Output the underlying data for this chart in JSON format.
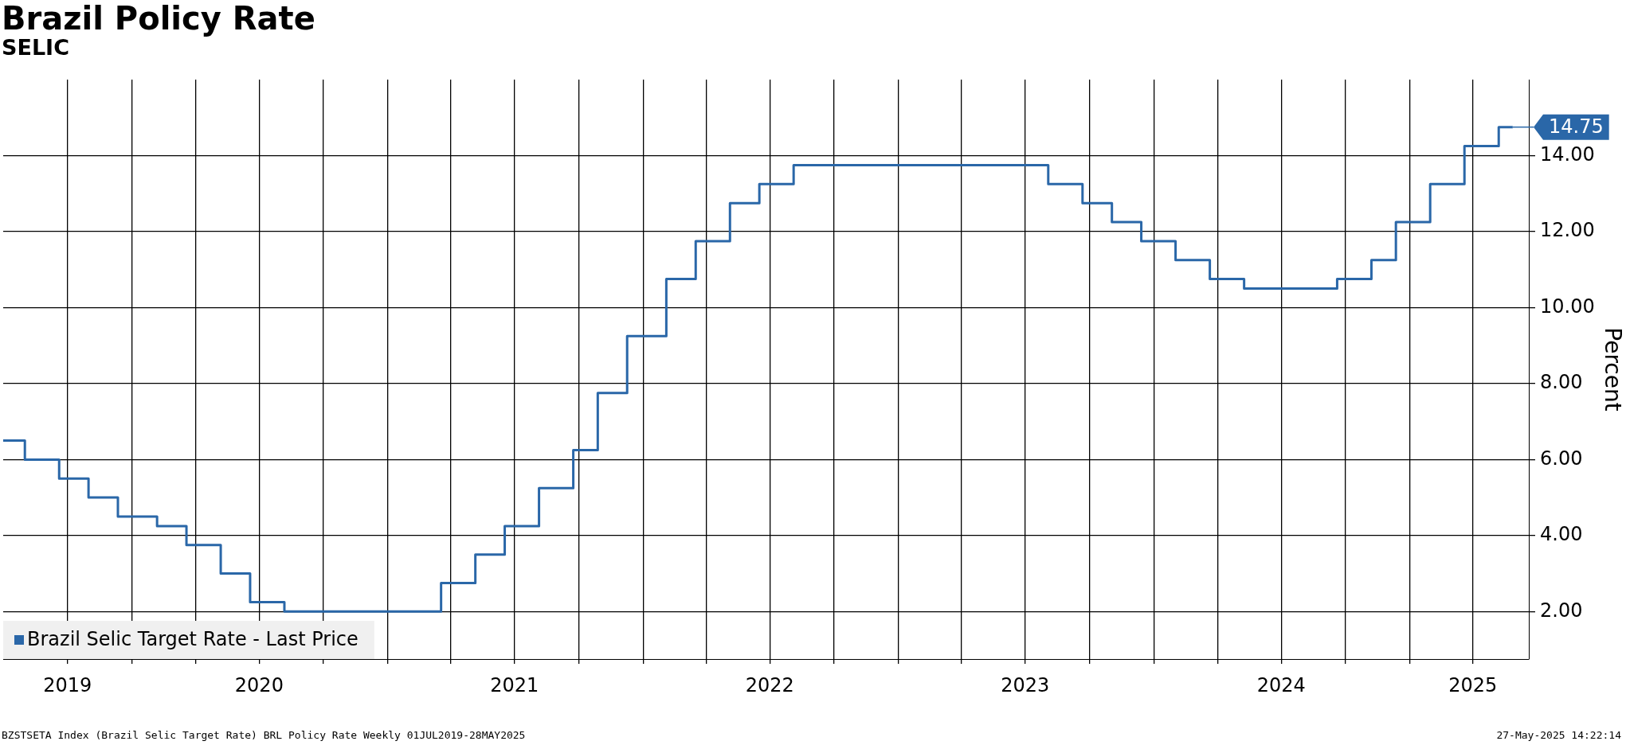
{
  "chart_data": {
    "type": "step",
    "title": "Brazil Policy Rate",
    "subtitle": "SELIC",
    "ylabel": "Percent",
    "x": [
      "2019-07-01",
      "2019-08-01",
      "2019-09-19",
      "2019-10-31",
      "2019-12-12",
      "2020-02-06",
      "2020-03-19",
      "2020-05-07",
      "2020-06-18",
      "2020-08-06",
      "2021-03-18",
      "2021-05-06",
      "2021-06-17",
      "2021-08-05",
      "2021-09-23",
      "2021-10-28",
      "2021-12-09",
      "2022-02-03",
      "2022-03-17",
      "2022-05-05",
      "2022-06-16",
      "2022-08-04",
      "2023-08-03",
      "2023-09-21",
      "2023-11-02",
      "2023-12-14",
      "2024-02-01",
      "2024-03-21",
      "2024-05-09",
      "2024-09-19",
      "2024-11-07",
      "2024-12-12",
      "2025-01-30",
      "2025-03-20",
      "2025-05-08",
      "2025-05-28"
    ],
    "series": [
      {
        "name": "Brazil Selic Target Rate - Last Price",
        "color": "#2a67a8",
        "values": [
          6.5,
          6.0,
          5.5,
          5.0,
          4.5,
          4.25,
          3.75,
          3.0,
          2.25,
          2.0,
          2.75,
          3.5,
          4.25,
          5.25,
          6.25,
          7.75,
          9.25,
          10.75,
          11.75,
          12.75,
          13.25,
          13.75,
          13.25,
          12.75,
          12.25,
          11.75,
          11.25,
          10.75,
          10.5,
          10.75,
          11.25,
          12.25,
          13.25,
          14.25,
          14.75,
          14.75
        ]
      }
    ],
    "xlim": [
      "2019-07-01",
      "2025-06-20"
    ],
    "xticks": [
      {
        "value": "2019-10-01",
        "label": "2019"
      },
      {
        "value": "2020-01-01",
        "label": null
      },
      {
        "value": "2020-04-01",
        "label": null
      },
      {
        "value": "2020-07-01",
        "label": "2020"
      },
      {
        "value": "2020-10-01",
        "label": null
      },
      {
        "value": "2021-01-01",
        "label": null
      },
      {
        "value": "2021-04-01",
        "label": null
      },
      {
        "value": "2021-07-01",
        "label": "2021"
      },
      {
        "value": "2021-10-01",
        "label": null
      },
      {
        "value": "2022-01-01",
        "label": null
      },
      {
        "value": "2022-04-01",
        "label": null
      },
      {
        "value": "2022-07-01",
        "label": "2022"
      },
      {
        "value": "2022-10-01",
        "label": null
      },
      {
        "value": "2023-01-01",
        "label": null
      },
      {
        "value": "2023-04-01",
        "label": null
      },
      {
        "value": "2023-07-01",
        "label": "2023"
      },
      {
        "value": "2023-10-01",
        "label": null
      },
      {
        "value": "2024-01-01",
        "label": null
      },
      {
        "value": "2024-04-01",
        "label": null
      },
      {
        "value": "2024-07-01",
        "label": "2024"
      },
      {
        "value": "2024-10-01",
        "label": null
      },
      {
        "value": "2025-01-01",
        "label": null
      },
      {
        "value": "2025-04-01",
        "label": "2025"
      }
    ],
    "ylim": [
      0.75,
      16
    ],
    "yticks": [
      {
        "value": 2,
        "label": "2.00"
      },
      {
        "value": 4,
        "label": "4.00"
      },
      {
        "value": 6,
        "label": "6.00"
      },
      {
        "value": 8,
        "label": "8.00"
      },
      {
        "value": 10,
        "label": "10.00"
      },
      {
        "value": 12,
        "label": "12.00"
      },
      {
        "value": 14,
        "label": "14.00"
      }
    ],
    "grid": true,
    "legend": "bottom left",
    "marker": "none",
    "line_style": "solid",
    "annotations": [
      {
        "text": "14.75",
        "x": "2025-05-28",
        "y": 14.75
      },
      "BZSTSETA Index (Brazil Selic Target Rate) BRL Policy Rate  Weekly 01JUL2019-28MAY2025",
      "27-May-2025 14:22:14"
    ]
  }
}
